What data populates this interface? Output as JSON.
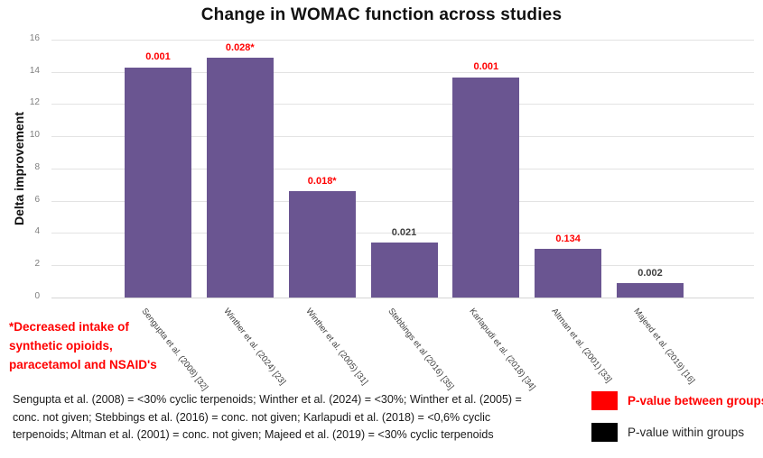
{
  "title": "Change in WOMAC function across studies",
  "colors": {
    "bar_purple": "#6A5591",
    "red": "#FF0000",
    "dark_label": "#3f3f3f",
    "gridline": "#e3e3e3",
    "tick_gray": "#7f7f7f"
  },
  "chart_data": {
    "type": "bar",
    "title": "Change in WOMAC function across studies",
    "xlabel": "",
    "ylabel": "Delta improvement",
    "ylim": [
      0,
      16
    ],
    "yticks": [
      16,
      14,
      12,
      10,
      8,
      6,
      4,
      2,
      0
    ],
    "grid": true,
    "bar_color": "#6A5591",
    "categories": [
      "Sengupta et al. (2008) [32]",
      "Winther et al. (2024) [23]",
      "Winther et al. (2005) [31]",
      "Stebbings et al (2016) [35]",
      "Karlapudi et al. (2018) [34]",
      "Altman et al. (2001) [33]",
      "Majeed et al. (2019) [16]"
    ],
    "values": [
      14.3,
      14.9,
      6.6,
      3.4,
      13.7,
      3.0,
      0.9
    ],
    "p_value_labels": [
      "0.001",
      "0.028*",
      "0.018*",
      "0.021",
      "0.001",
      "0.134",
      "0.002"
    ],
    "p_value_types": [
      "between",
      "between",
      "between",
      "within",
      "between",
      "between",
      "within"
    ],
    "annotation_legend": "red label = P-value between groups, black label = P-value within groups"
  },
  "footnote": {
    "text": "*Decreased intake of\nsynthetic opioids,\nparacetamol and NSAID's"
  },
  "caption": {
    "text": "Sengupta et al. (2008) = <30% cyclic terpenoids; Winther et al. (2024) = <30%; Winther et al. (2005) =\nconc. not given;  Stebbings et al. (2016) = conc. not given; Karlapudi et al. (2018) = <0,6% cyclic\nterpenoids; Altman et al. (2001) = conc. not given; Majeed et al. (2019) = <30% cyclic terpenoids"
  },
  "legend": {
    "items": [
      {
        "label": "P-value between groups",
        "color": "#FF0000",
        "text_color": "#FF0000"
      },
      {
        "label": "P-value within groups",
        "color": "#000000",
        "text_color": "#262626"
      }
    ]
  }
}
